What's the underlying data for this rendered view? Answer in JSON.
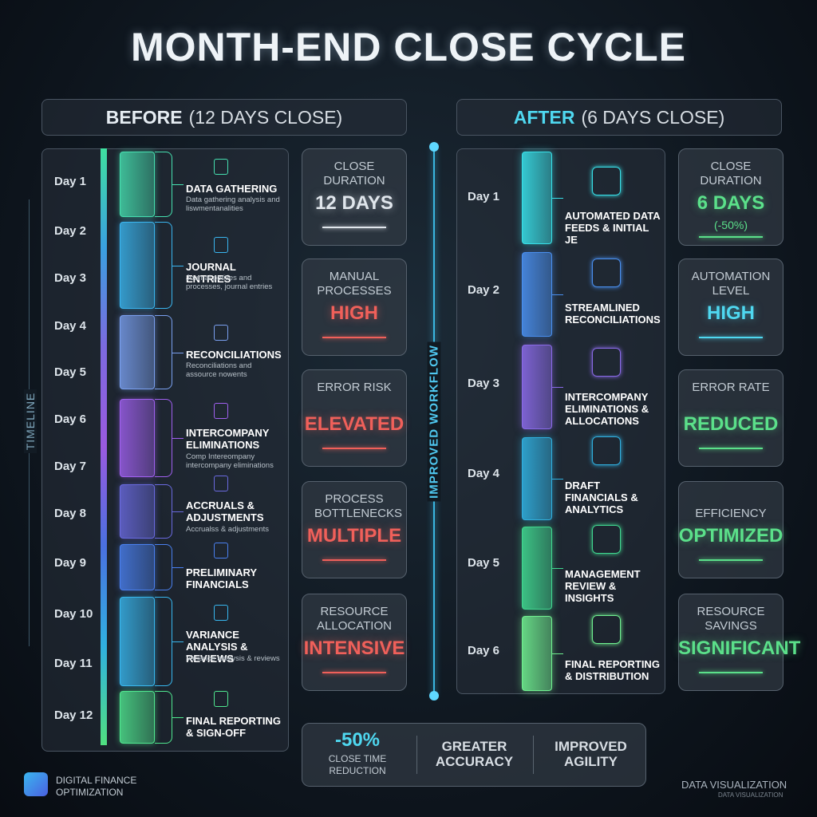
{
  "title": "MONTH-END CLOSE CYCLE",
  "before": {
    "heading_bold": "BEFORE",
    "heading_rest": "(12 DAYS CLOSE)",
    "days": [
      "Day 1",
      "Day 2",
      "Day 3",
      "Day 4",
      "Day 5",
      "Day 6",
      "Day 7",
      "Day 8",
      "Day 9",
      "Day 10",
      "Day 11",
      "Day 12"
    ],
    "steps": [
      {
        "title": "DATA GATHERING",
        "desc": "Data gathering analysis and liswmentanalities"
      },
      {
        "title": "JOURNAL ENTRIES",
        "desc": "Journal potities and processes, journal entries"
      },
      {
        "title": "RECONCILIATIONS",
        "desc": "Reconciliations and assource nowents"
      },
      {
        "title": "INTERCOMPANY ELIMINATIONS",
        "desc": "Comp Intereompany intercompany eliminations"
      },
      {
        "title": "ACCRUALS & ADJUSTMENTS",
        "desc": "Accrualss & adjustments"
      },
      {
        "title": "PRELIMINARY FINANCIALS",
        "desc": ""
      },
      {
        "title": "VARIANCE ANALYSIS & REVIEWS",
        "desc": "Variance analysis & reviews"
      },
      {
        "title": "FINAL REPORTING & SIGN-OFF",
        "desc": ""
      }
    ],
    "metrics": [
      {
        "label": "CLOSE DURATION",
        "value": "12 DAYS"
      },
      {
        "label": "MANUAL PROCESSES",
        "value": "HIGH"
      },
      {
        "label": "ERROR RISK",
        "value": "ELEVATED"
      },
      {
        "label": "PROCESS BOTTLENECKS",
        "value": "MULTIPLE"
      },
      {
        "label": "RESOURCE ALLOCATION",
        "value": "INTENSIVE"
      }
    ]
  },
  "side_label": "TIMELINE",
  "center_label": "IMPROVED WORKFLOW",
  "after": {
    "heading_bold": "AFTER",
    "heading_rest": "(6 DAYS CLOSE)",
    "days": [
      "Day 1",
      "Day 2",
      "Day 3",
      "Day 4",
      "Day 5",
      "Day 6"
    ],
    "steps": [
      {
        "title": "AUTOMATED DATA FEEDS & INITIAL JE"
      },
      {
        "title": "STREAMLINED RECONCILIATIONS"
      },
      {
        "title": "INTERCOMPANY ELIMINATIONS & ALLOCATIONS"
      },
      {
        "title": "DRAFT FINANCIALS & ANALYTICS"
      },
      {
        "title": "MANAGEMENT REVIEW & INSIGHTS"
      },
      {
        "title": "FINAL REPORTING & DISTRIBUTION"
      }
    ],
    "metrics": [
      {
        "label": "CLOSE DURATION",
        "value": "6 DAYS",
        "note": "(-50%)"
      },
      {
        "label": "AUTOMATION LEVEL",
        "value": "HIGH"
      },
      {
        "label": "ERROR RATE",
        "value": "REDUCED"
      },
      {
        "label": "EFFICIENCY",
        "value": "OPTIMIZED"
      },
      {
        "label": "RESOURCE SAVINGS",
        "value": "SIGNIFICANT"
      }
    ]
  },
  "summary": [
    {
      "value": "-50%",
      "label": "CLOSE TIME REDUCTION"
    },
    {
      "label": "GREATER ACCURACY"
    },
    {
      "label": "IMPROVED AGILITY"
    }
  ],
  "footer": {
    "brand": "DIGITAL FINANCE OPTIMIZATION",
    "right": "DATA VISUALIZATION",
    "right_sub": "DATA VISUALIZATION"
  }
}
